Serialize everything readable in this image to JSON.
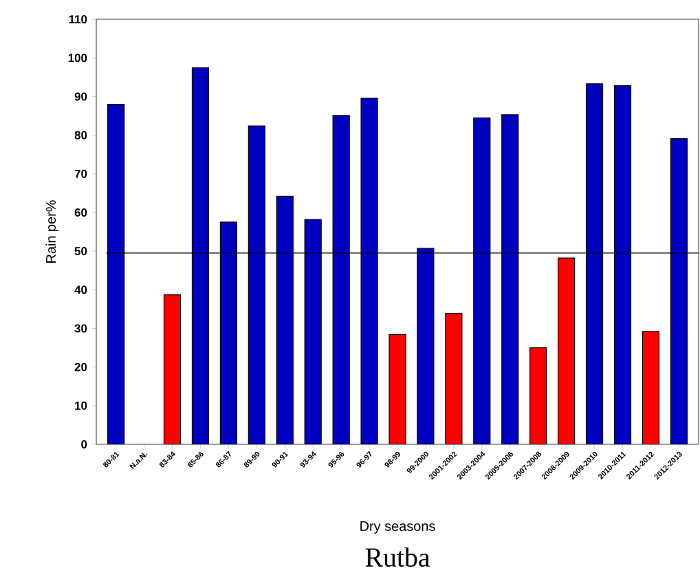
{
  "chart_data": {
    "type": "bar",
    "title": "Rutba",
    "xlabel": "Dry seasons",
    "ylabel": "Rain per%",
    "categories": [
      "80-81",
      "N.a.N.",
      "83-84",
      "85-86",
      "86-87",
      "89-90",
      "90-91",
      "93-94",
      "95-96",
      "96-97",
      "98-99",
      "99-2000",
      "2001-2002",
      "2003-2004",
      "2005-2006",
      "2007-2008",
      "2008-2009",
      "2009-2010",
      "2010-2011",
      "2011-2012",
      "2012-2013"
    ],
    "values": [
      88,
      null,
      38.7,
      97.5,
      57.5,
      82.4,
      64.2,
      58.2,
      85.1,
      89.6,
      28.4,
      50.7,
      33.9,
      84.5,
      85.3,
      25,
      48.2,
      93.3,
      92.8,
      29.2,
      79.1
    ],
    "colors": [
      "#0000c0",
      "#0000c0",
      "#ff0000",
      "#0000c0",
      "#0000c0",
      "#0000c0",
      "#0000c0",
      "#0000c0",
      "#0000c0",
      "#0000c0",
      "#ff0000",
      "#0000c0",
      "#ff0000",
      "#0000c0",
      "#0000c0",
      "#ff0000",
      "#ff0000",
      "#0000c0",
      "#0000c0",
      "#ff0000",
      "#0000c0"
    ],
    "ylim": [
      0,
      110
    ],
    "yticks": [
      0,
      10,
      20,
      30,
      40,
      50,
      60,
      70,
      80,
      90,
      100,
      110
    ],
    "ref_lines": [
      {
        "axis": "y",
        "value": 49.5,
        "color": "#000000"
      }
    ],
    "grid": false
  }
}
